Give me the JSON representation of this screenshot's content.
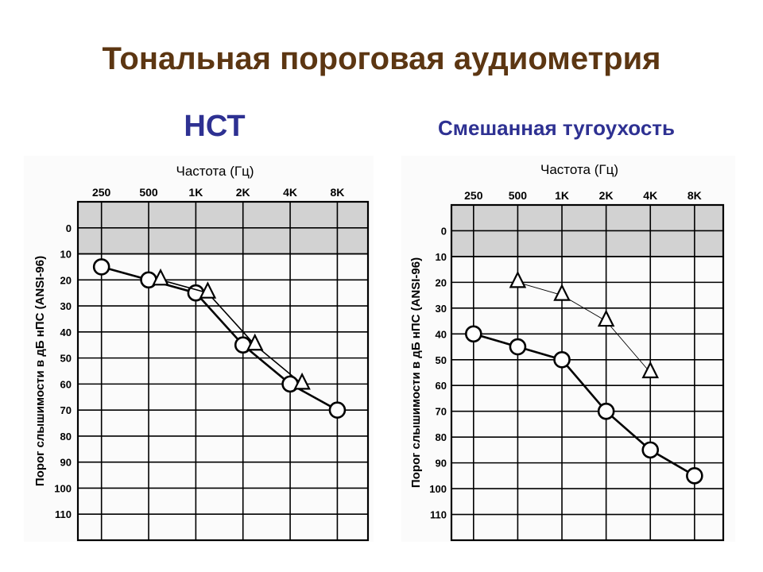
{
  "title": "Тональная пороговая аудиометрия",
  "colors": {
    "title": "#5c3612",
    "subtitle": "#2e3192",
    "chart_ink": "#000000",
    "normal_zone": "#d2d2d2"
  },
  "charts": [
    {
      "subtitle": "НСТ"
    },
    {
      "subtitle": "Смешанная тугоухость"
    }
  ],
  "chart_data": [
    {
      "type": "line",
      "title": "НСТ",
      "xlabel": "Частота (Гц)",
      "ylabel": "Порог слышимости в дБ нПС (ANSI-96)",
      "categories": [
        "250",
        "500",
        "1K",
        "2K",
        "4K",
        "8K"
      ],
      "yticks": [
        0,
        10,
        20,
        30,
        40,
        50,
        60,
        70,
        80,
        90,
        100,
        110
      ],
      "ylim": [
        -10,
        120
      ],
      "y_inverted": true,
      "normal_zone": [
        -10,
        10
      ],
      "grid": true,
      "series": [
        {
          "marker": "circle",
          "values": [
            15,
            20,
            25,
            45,
            60,
            70
          ]
        },
        {
          "marker": "triangle",
          "values": [
            null,
            20,
            25,
            45,
            60,
            null
          ]
        }
      ]
    },
    {
      "type": "line",
      "title": "Смешанная тугоухость",
      "xlabel": "Частота (Гц)",
      "ylabel": "Порог слышимости в дБ нПС (ANSI-96)",
      "categories": [
        "250",
        "500",
        "1K",
        "2K",
        "4K",
        "8K"
      ],
      "yticks": [
        0,
        10,
        20,
        30,
        40,
        50,
        60,
        70,
        80,
        90,
        100,
        110
      ],
      "ylim": [
        -10,
        120
      ],
      "y_inverted": true,
      "normal_zone": [
        -10,
        10
      ],
      "grid": true,
      "series": [
        {
          "marker": "circle",
          "values": [
            40,
            45,
            50,
            70,
            85,
            95
          ]
        },
        {
          "marker": "triangle",
          "values": [
            null,
            20,
            25,
            35,
            55,
            null
          ]
        }
      ]
    }
  ]
}
